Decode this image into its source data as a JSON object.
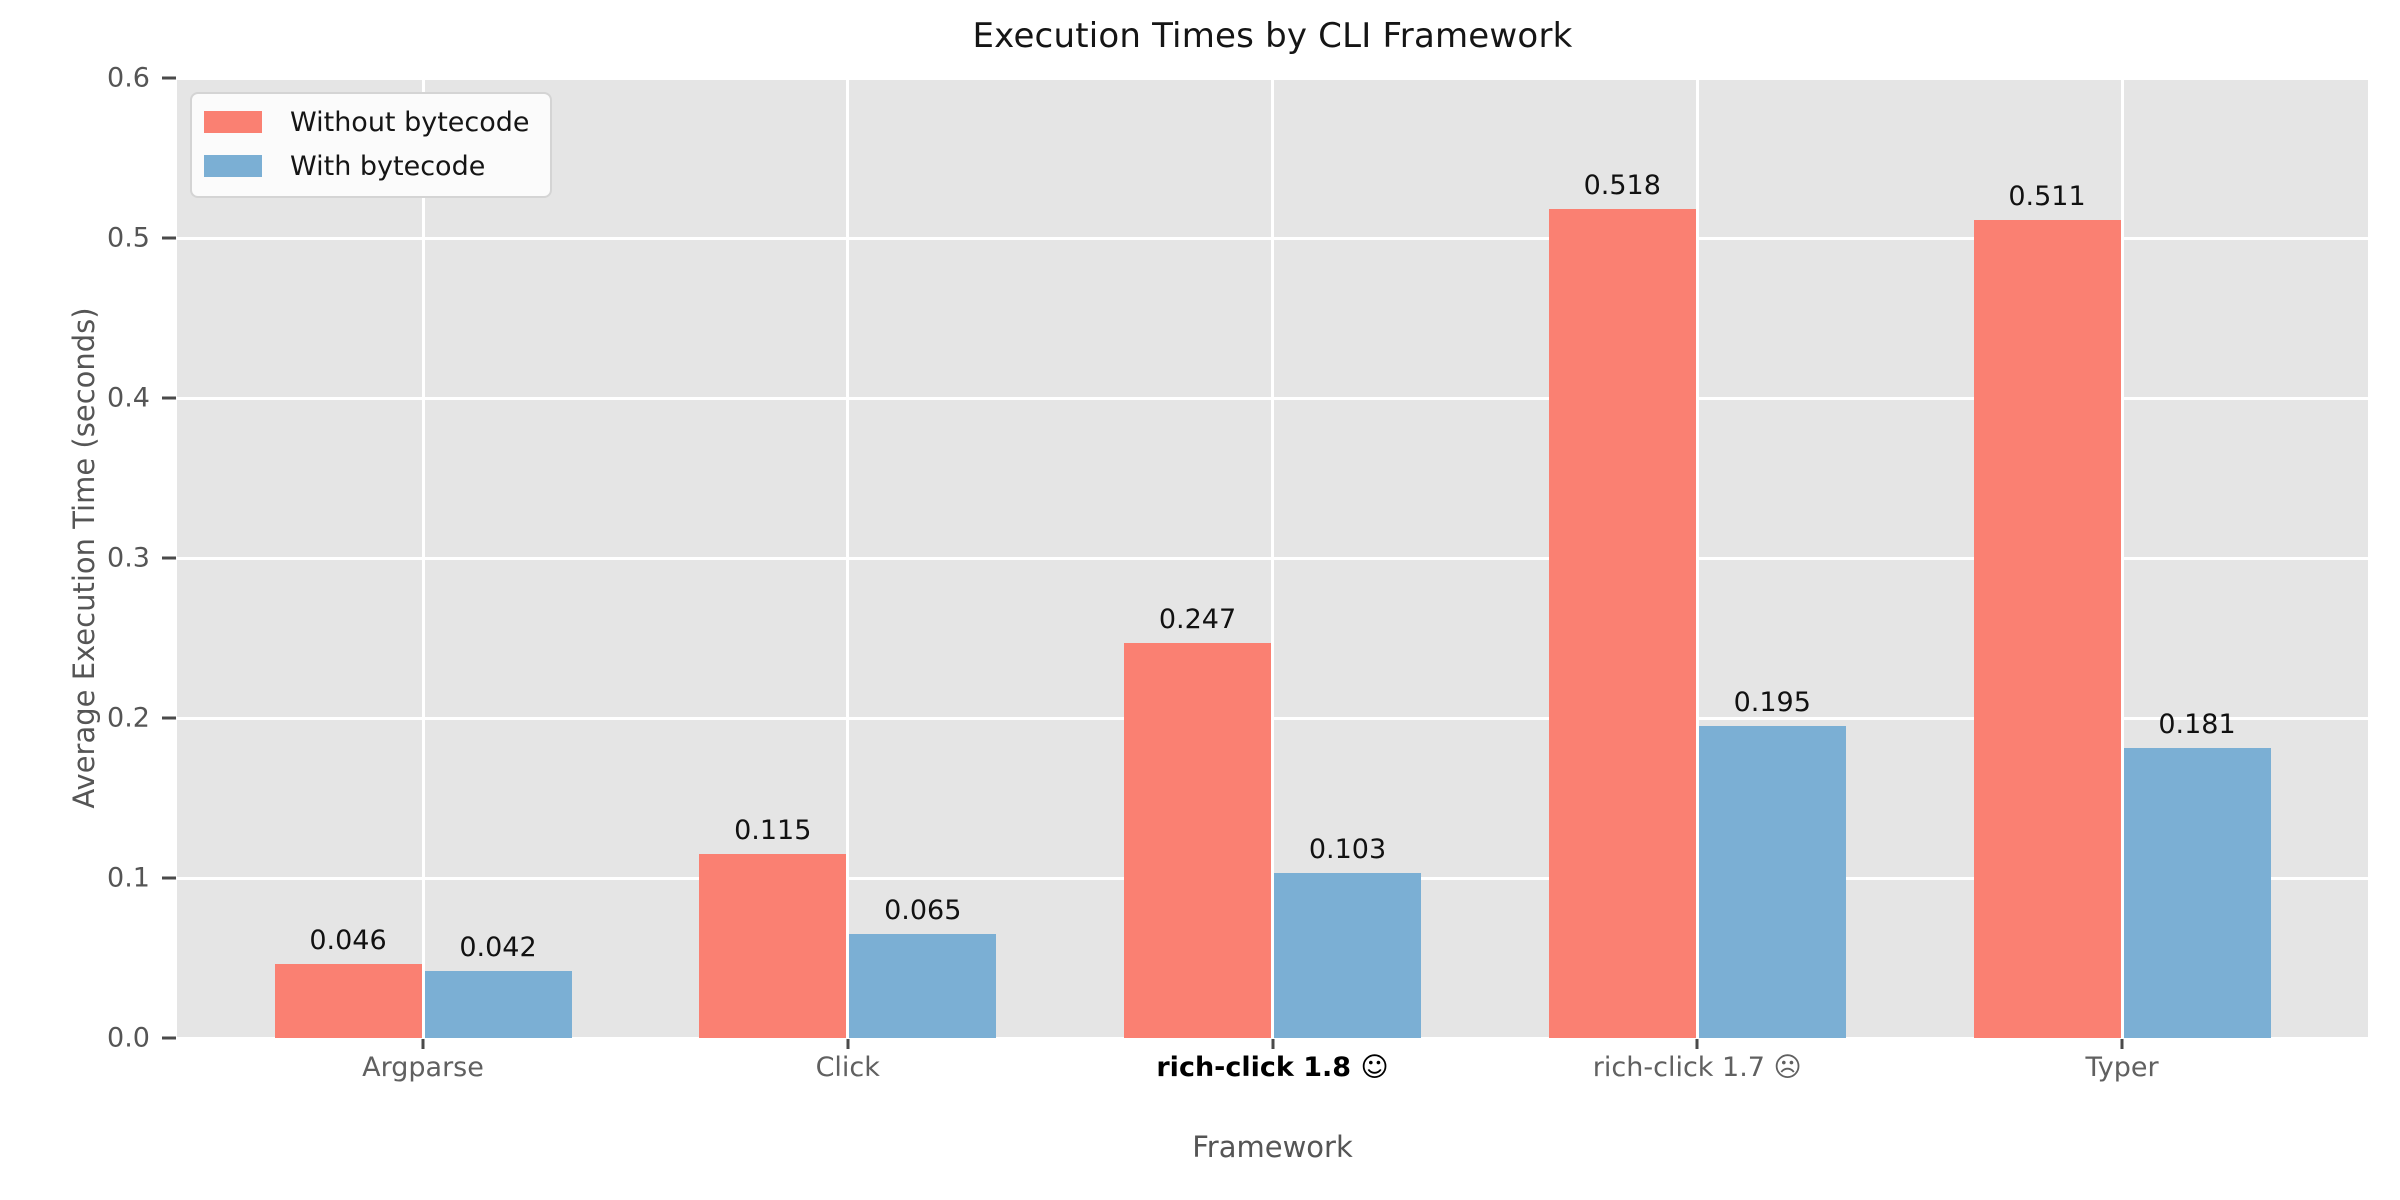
{
  "chart_data": {
    "type": "bar",
    "title": "Execution Times by CLI Framework",
    "xlabel": "Framework",
    "ylabel": "Average Execution Time (seconds)",
    "categories": [
      "Argparse",
      "Click",
      "rich-click 1.8 ☺",
      "rich-click 1.7 ☹",
      "Typer"
    ],
    "emphasized_category": "rich-click 1.8 ☺",
    "series": [
      {
        "name": "Without bytecode",
        "color": "#FA8072",
        "values": [
          0.046,
          0.115,
          0.247,
          0.518,
          0.511
        ],
        "labels": [
          "0.046",
          "0.115",
          "0.247",
          "0.518",
          "0.511"
        ]
      },
      {
        "name": "With bytecode",
        "color": "#7BAFD4",
        "values": [
          0.042,
          0.065,
          0.103,
          0.195,
          0.181
        ],
        "labels": [
          "0.042",
          "0.065",
          "0.103",
          "0.195",
          "0.181"
        ]
      }
    ],
    "ylim": [
      0,
      0.6
    ],
    "yticks": [
      "0.0",
      "0.1",
      "0.2",
      "0.3",
      "0.4",
      "0.5",
      "0.6"
    ],
    "grid": true,
    "legend_position": "upper left"
  },
  "style": {
    "plot_background": "#E5E5E5",
    "grid_color": "#FFFFFF",
    "tick_label_color": "#555555",
    "value_label_color": "#111111",
    "title_color": "#151515"
  }
}
